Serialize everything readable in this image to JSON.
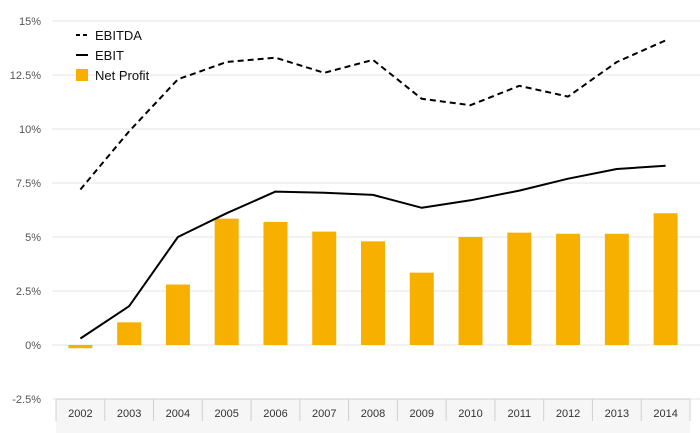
{
  "chart_data": {
    "type": "bar",
    "categories": [
      "2002",
      "2003",
      "2004",
      "2005",
      "2006",
      "2007",
      "2008",
      "2009",
      "2010",
      "2011",
      "2012",
      "2013",
      "2014"
    ],
    "ylim": [
      -2.5,
      15
    ],
    "yticks": [
      "-2.5%",
      "0%",
      "2.5%",
      "5%",
      "7.5%",
      "10%",
      "12.5%",
      "15%"
    ],
    "ytick_values": [
      -2.5,
      0,
      2.5,
      5,
      7.5,
      10,
      12.5,
      15
    ],
    "grid": true,
    "legend_position": "top-left",
    "series": [
      {
        "name": "EBITDA",
        "kind": "line",
        "style": "dashed",
        "color": "#000000",
        "values": [
          7.2,
          9.9,
          12.3,
          13.1,
          13.3,
          12.6,
          13.2,
          11.4,
          11.1,
          12.0,
          11.5,
          13.1,
          14.1
        ]
      },
      {
        "name": "EBIT",
        "kind": "line",
        "style": "solid",
        "color": "#000000",
        "values": [
          0.3,
          1.8,
          5.0,
          6.1,
          7.1,
          7.05,
          6.95,
          6.35,
          6.7,
          7.15,
          7.7,
          8.15,
          8.3
        ]
      },
      {
        "name": "Net Profit",
        "kind": "bar",
        "color": "#F7B000",
        "values": [
          -0.15,
          1.05,
          2.8,
          5.85,
          5.7,
          5.25,
          4.8,
          3.35,
          5.0,
          5.2,
          5.15,
          5.15,
          6.1
        ]
      }
    ]
  }
}
